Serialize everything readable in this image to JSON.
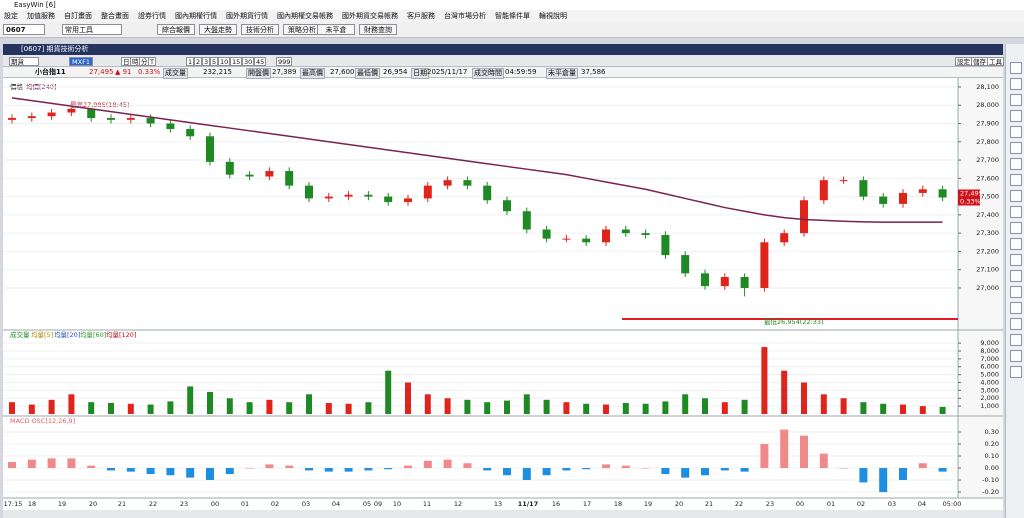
{
  "window": {
    "title": "EasyWin [6]",
    "inner_title": "[0607] 期貨技術分析"
  },
  "menu": [
    "設定",
    "加值服務",
    "自訂畫面",
    "整合畫面",
    "證券行情",
    "國內期權行情",
    "國外期貨行情",
    "國內期權交易帳務",
    "國外期貨交易帳務",
    "客戶服務",
    "台灣市場分析",
    "智能條件單",
    "輪視說明"
  ],
  "toolbar": {
    "code": "0607",
    "tools": "常用工具",
    "buttons": [
      "綜合報價",
      "大盤走勢",
      "技術分析",
      "策略分析",
      "未平倉",
      "財務查詢"
    ]
  },
  "controls": {
    "market": "期貨",
    "symbol": "MXF1",
    "periods": [
      "日",
      "時",
      "分",
      "T"
    ],
    "minutes": [
      "1",
      "2",
      "3",
      "5",
      "10",
      "15",
      "30",
      "45"
    ],
    "count": "999",
    "right_buttons": [
      "設定",
      "儲存",
      "工具"
    ]
  },
  "info": {
    "name": "小台指11",
    "last": "27,495",
    "change": "▲ 91",
    "change_pct": "0.33%",
    "fields": [
      {
        "label": "成交量",
        "value": "232,215"
      },
      {
        "label": "開盤價",
        "value": "27,389"
      },
      {
        "label": "最高價",
        "value": "27,600"
      },
      {
        "label": "最低價",
        "value": "26,954"
      },
      {
        "label": "日期",
        "value": "2025/11/17"
      },
      {
        "label": "成交時間",
        "value": "04:59:59"
      },
      {
        "label": "未平倉量",
        "value": "37,586"
      }
    ]
  },
  "chart_data": {
    "type": "candlestick",
    "price_legend": "價格",
    "annotations": {
      "high": "最高27,985(18:45)",
      "low": "最低26,954(22:33)"
    },
    "ylim": [
      26781,
      28138
    ],
    "yticks": [
      {
        "value": 28100,
        "label": "28,100"
      },
      {
        "value": 28000,
        "label": "28,000"
      },
      {
        "value": 27900,
        "label": "27,900"
      },
      {
        "value": 27800,
        "label": "27,800"
      },
      {
        "value": 27700,
        "label": "27,700"
      },
      {
        "value": 27600,
        "label": "27,600"
      },
      {
        "value": 27500,
        "label": "27,500"
      },
      {
        "value": 27400,
        "label": "27,400"
      },
      {
        "value": 27300,
        "label": "27,300"
      },
      {
        "value": 27200,
        "label": "27,200"
      },
      {
        "value": 27100,
        "label": "27,100"
      },
      {
        "value": 27000,
        "label": "27,000"
      }
    ],
    "up_color": "#e0231b",
    "down_color": "#1f8a24",
    "open": [
      27920,
      27930,
      27940,
      27960,
      27980,
      27930,
      27920,
      27930,
      27900,
      27870,
      27830,
      27690,
      27620,
      27610,
      27640,
      27560,
      27490,
      27500,
      27510,
      27500,
      27470,
      27490,
      27560,
      27590,
      27560,
      27480,
      27420,
      27320,
      27270,
      27270,
      27250,
      27320,
      27300,
      27290,
      27180,
      27080,
      27010,
      27060,
      27000,
      27250,
      27300,
      27480,
      27590,
      27590,
      27500,
      27460,
      27520,
      27540
    ],
    "high": [
      27950,
      27960,
      27980,
      27985,
      27985,
      27950,
      27950,
      27950,
      27920,
      27890,
      27850,
      27710,
      27640,
      27660,
      27660,
      27580,
      27520,
      27530,
      27530,
      27520,
      27510,
      27580,
      27610,
      27610,
      27580,
      27500,
      27440,
      27340,
      27290,
      27290,
      27340,
      27340,
      27320,
      27310,
      27200,
      27100,
      27080,
      27080,
      27270,
      27320,
      27500,
      27610,
      27610,
      27610,
      27520,
      27540,
      27560,
      27560
    ],
    "low": [
      27900,
      27910,
      27920,
      27940,
      27910,
      27900,
      27900,
      27880,
      27850,
      27810,
      27670,
      27600,
      27590,
      27590,
      27540,
      27470,
      27470,
      27480,
      27480,
      27450,
      27450,
      27470,
      27540,
      27540,
      27460,
      27400,
      27300,
      27250,
      27250,
      27230,
      27230,
      27280,
      27270,
      27160,
      27060,
      26990,
      26990,
      26954,
      26980,
      27230,
      27280,
      27460,
      27570,
      27480,
      27440,
      27440,
      27500,
      27475
    ],
    "close": [
      27930,
      27940,
      27960,
      27980,
      27930,
      27920,
      27930,
      27900,
      27870,
      27830,
      27690,
      27620,
      27610,
      27640,
      27560,
      27490,
      27500,
      27510,
      27500,
      27470,
      27490,
      27560,
      27590,
      27560,
      27480,
      27420,
      27320,
      27270,
      27270,
      27250,
      27320,
      27300,
      27290,
      27180,
      27080,
      27010,
      27060,
      27000,
      27250,
      27300,
      27480,
      27590,
      27590,
      27500,
      27460,
      27520,
      27540,
      27495
    ],
    "ma": {
      "name": "均價[240]",
      "color": "#7a2350",
      "values": [
        28040,
        28025,
        28010,
        27995,
        27980,
        27965,
        27950,
        27935,
        27920,
        27905,
        27890,
        27875,
        27860,
        27845,
        27830,
        27815,
        27800,
        27785,
        27770,
        27755,
        27740,
        27725,
        27710,
        27695,
        27680,
        27665,
        27650,
        27635,
        27620,
        27600,
        27580,
        27560,
        27540,
        27515,
        27490,
        27465,
        27440,
        27420,
        27400,
        27385,
        27375,
        27370,
        27365,
        27362,
        27360,
        27360,
        27360,
        27360
      ]
    },
    "x_labels": [
      "17:15",
      "18",
      "19",
      "20",
      "21",
      "22",
      "23",
      "00",
      "01",
      "02",
      "03",
      "04",
      "05",
      "09",
      "10",
      "11",
      "12",
      "13",
      "11/17",
      "16",
      "17",
      "18",
      "19",
      "20",
      "21",
      "22",
      "23",
      "00",
      "01",
      "02",
      "03",
      "04",
      "05:00"
    ],
    "volume": {
      "legend": [
        "成交量",
        "均量[5]",
        "均量[20]",
        "均量[60]",
        "均量[120]"
      ],
      "ylim": [
        0,
        10410
      ],
      "yticks": [
        {
          "value": 1000,
          "label": "1,000"
        },
        {
          "value": 2000,
          "label": "2,000"
        },
        {
          "value": 3000,
          "label": "3,000"
        },
        {
          "value": 4000,
          "label": "4,000"
        },
        {
          "value": 5000,
          "label": "5,000"
        },
        {
          "value": 6000,
          "label": "6,000"
        },
        {
          "value": 7000,
          "label": "7,000"
        },
        {
          "value": 8000,
          "label": "8,000"
        },
        {
          "value": 9000,
          "label": "9,000"
        }
      ],
      "values": [
        1500,
        1200,
        1800,
        2500,
        1500,
        1400,
        1300,
        1200,
        1600,
        3500,
        2800,
        2000,
        1500,
        1800,
        1500,
        2500,
        1400,
        1300,
        1500,
        5500,
        4000,
        2500,
        2000,
        1800,
        1500,
        1700,
        2500,
        1800,
        1500,
        1300,
        1200,
        1400,
        1300,
        1600,
        2500,
        2000,
        1500,
        1800,
        8500,
        5500,
        4000,
        2500,
        2000,
        1500,
        1300,
        1200,
        1000,
        900
      ]
    },
    "macd": {
      "name": "MACD OSC[12,26,9]",
      "pos_color": "#f08a8a",
      "neg_color": "#1e8fe0",
      "ylim": [
        -0.233,
        0.4
      ],
      "yticks": [
        {
          "value": 0.3,
          "label": "0.30"
        },
        {
          "value": 0.2,
          "label": "0.20"
        },
        {
          "value": 0.1,
          "label": "0.10"
        },
        {
          "value": 0,
          "label": "0.00"
        },
        {
          "value": -0.1,
          "label": "-0.10"
        },
        {
          "value": -0.2,
          "label": "-0.20"
        }
      ],
      "values": [
        0.05,
        0.07,
        0.08,
        0.08,
        0.02,
        -0.02,
        -0.03,
        -0.05,
        -0.06,
        -0.08,
        -0.1,
        -0.05,
        0,
        0.03,
        0.02,
        -0.02,
        -0.03,
        -0.03,
        -0.02,
        -0.01,
        0.02,
        0.06,
        0.07,
        0.04,
        -0.02,
        -0.06,
        -0.1,
        -0.06,
        -0.02,
        -0.01,
        0.03,
        0.02,
        0,
        -0.05,
        -0.08,
        -0.06,
        -0.02,
        -0.03,
        0.2,
        0.32,
        0.27,
        0.12,
        0,
        -0.12,
        -0.2,
        -0.1,
        0.04,
        -0.03
      ]
    }
  }
}
